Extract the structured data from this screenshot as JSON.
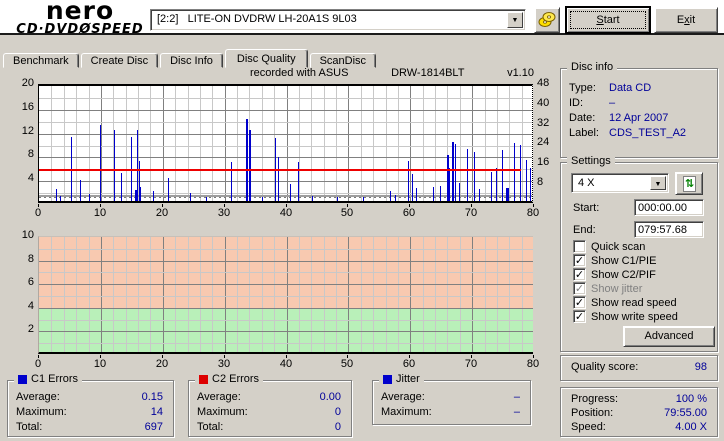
{
  "app": {
    "logo": {
      "line1": "nero",
      "line2_left": "CD·DVD",
      "disc_glyph": "Ø",
      "line2_right": "SPEED"
    },
    "drive_selector": "[2:2]   LITE-ON DVDRW LH-20A1S 9L03",
    "start_button": {
      "label": "Start",
      "underline_index": 0
    },
    "exit_button": {
      "label": "Exit",
      "underline_index": 1
    }
  },
  "tabs": [
    {
      "label": "Benchmark",
      "active": false
    },
    {
      "label": "Create Disc",
      "active": false
    },
    {
      "label": "Disc Info",
      "active": false
    },
    {
      "label": "Disc Quality",
      "active": true
    },
    {
      "label": "ScanDisc",
      "active": false
    }
  ],
  "recorded": {
    "prefix": "recorded with ASUS",
    "model": "DRW-1814BLT",
    "version": "v1.10"
  },
  "disc_info": {
    "title": "Disc info",
    "rows": [
      {
        "label": "Type:",
        "value": "Data CD"
      },
      {
        "label": "ID:",
        "value": "–"
      },
      {
        "label": "Date:",
        "value": "12 Apr 2007"
      },
      {
        "label": "Label:",
        "value": "CDS_TEST_A2"
      }
    ]
  },
  "settings": {
    "title": "Settings",
    "speed_selected": "4 X",
    "start_label": "Start:",
    "start_value": "000:00.00",
    "end_label": "End:",
    "end_value": "079:57.68",
    "checkboxes": [
      {
        "label": "Quick scan",
        "checked": false,
        "disabled": false
      },
      {
        "label": "Show C1/PIE",
        "checked": true,
        "disabled": false
      },
      {
        "label": "Show C2/PIF",
        "checked": true,
        "disabled": false
      },
      {
        "label": "Show jitter",
        "checked": true,
        "disabled": true
      },
      {
        "label": "Show read speed",
        "checked": true,
        "disabled": false
      },
      {
        "label": "Show write speed",
        "checked": true,
        "disabled": false
      }
    ],
    "advanced_label": "Advanced"
  },
  "quality": {
    "label": "Quality score:",
    "value": "98"
  },
  "progress": {
    "rows": [
      {
        "label": "Progress:",
        "value": "100 %"
      },
      {
        "label": "Position:",
        "value": "79:55.00"
      },
      {
        "label": "Speed:",
        "value": "4.00 X"
      }
    ]
  },
  "stats_boxes": [
    {
      "title": "C1 Errors",
      "legend_color": "#0000cc",
      "rows": [
        {
          "label": "Average:",
          "value": "0.15"
        },
        {
          "label": "Maximum:",
          "value": "14"
        },
        {
          "label": "Total:",
          "value": "697"
        }
      ]
    },
    {
      "title": "C2 Errors",
      "legend_color": "#dd0000",
      "rows": [
        {
          "label": "Average:",
          "value": "0.00"
        },
        {
          "label": "Maximum:",
          "value": "0"
        },
        {
          "label": "Total:",
          "value": "0"
        }
      ]
    },
    {
      "title": "Jitter",
      "legend_color": "#0000cc",
      "rows": [
        {
          "label": "Average:",
          "value": "–"
        },
        {
          "label": "Maximum:",
          "value": "–"
        }
      ]
    }
  ],
  "chart_data": [
    {
      "type": "bar",
      "name": "c1-error-scan",
      "xlim": [
        0,
        80
      ],
      "x_ticks": [
        0,
        10,
        20,
        30,
        40,
        50,
        60,
        70,
        80
      ],
      "left_axis": {
        "lim": [
          0,
          20
        ],
        "ticks": [
          4,
          8,
          12,
          16,
          20
        ]
      },
      "right_axis": {
        "lim": [
          0,
          48
        ],
        "ticks": [
          8,
          16,
          24,
          32,
          40,
          48
        ]
      },
      "grid": {
        "minor_x": 2,
        "major_x": 10,
        "minor_y": 2,
        "major_y": 4
      },
      "limit_line": {
        "y": 6,
        "x_end": 77.9,
        "color": "#ee0000"
      },
      "speed_lines": [
        {
          "y": 1.7,
          "style": "solid",
          "color": "#9e9e9e",
          "x_end": 79.9
        },
        {
          "y": 1.4,
          "style": "dotted",
          "color": "#787878",
          "x_end": 79.9
        }
      ],
      "series": [
        {
          "name": "C1 errors",
          "color": "#0000cc",
          "points": [
            [
              2.7,
              2.0
            ],
            [
              3.4,
              0.8
            ],
            [
              5.2,
              10.8
            ],
            [
              6.6,
              3.6
            ],
            [
              8.1,
              1.2
            ],
            [
              9.8,
              12.8
            ],
            [
              12.1,
              11.9
            ],
            [
              13.3,
              4.7
            ],
            [
              14.8,
              10.7
            ],
            [
              15.5,
              1.8,
              2
            ],
            [
              15.8,
              11.9
            ],
            [
              16.1,
              6.7
            ],
            [
              16.4,
              2.3
            ],
            [
              18.4,
              1.6
            ],
            [
              20.9,
              3.8
            ],
            [
              24.4,
              1.4
            ],
            [
              27.0,
              0.6
            ],
            [
              31.0,
              6.6
            ],
            [
              33.5,
              13.7,
              2
            ],
            [
              34.0,
              11.9,
              2
            ],
            [
              36.1,
              0.7
            ],
            [
              38.2,
              10.6
            ],
            [
              38.6,
              7.4
            ],
            [
              40.5,
              2.8
            ],
            [
              41.9,
              6.5
            ],
            [
              44.1,
              0.8
            ],
            [
              48.2,
              0.7
            ],
            [
              52.3,
              0.6
            ],
            [
              56.7,
              1.6
            ],
            [
              57.5,
              1.0
            ],
            [
              59.6,
              6.7
            ],
            [
              60.3,
              4.6
            ],
            [
              61.0,
              2.2
            ],
            [
              63.7,
              2.3
            ],
            [
              64.8,
              2.6
            ],
            [
              65.9,
              7.8,
              2
            ],
            [
              66.3,
              5.5
            ],
            [
              66.8,
              9.9,
              2
            ],
            [
              67.2,
              9.5
            ],
            [
              67.9,
              3.0
            ],
            [
              69.2,
              8.7
            ],
            [
              70.3,
              8.3
            ],
            [
              71.1,
              2.0
            ],
            [
              73.1,
              4.9
            ],
            [
              73.8,
              5.5
            ],
            [
              74.8,
              8.5
            ],
            [
              75.4,
              2.2,
              3
            ],
            [
              76.8,
              9.7
            ],
            [
              77.7,
              9.4
            ],
            [
              78.7,
              6.9
            ],
            [
              79.4,
              5.5
            ],
            [
              79.8,
              8.2
            ]
          ]
        }
      ]
    },
    {
      "type": "area",
      "name": "jitter-scan",
      "xlim": [
        0,
        80
      ],
      "x_ticks": [
        0,
        10,
        20,
        30,
        40,
        50,
        60,
        70,
        80
      ],
      "left_axis": {
        "lim": [
          0,
          10
        ],
        "ticks": [
          2,
          4,
          6,
          8,
          10
        ]
      },
      "grid": {
        "minor_x": 2,
        "major_x": 10,
        "minor_y": 1,
        "major_y": 2
      },
      "bands": [
        {
          "from": 4,
          "to": 10,
          "color": "#f8c9b0"
        },
        {
          "from": 0,
          "to": 4,
          "color": "#b9f0b9"
        }
      ],
      "series": []
    }
  ]
}
